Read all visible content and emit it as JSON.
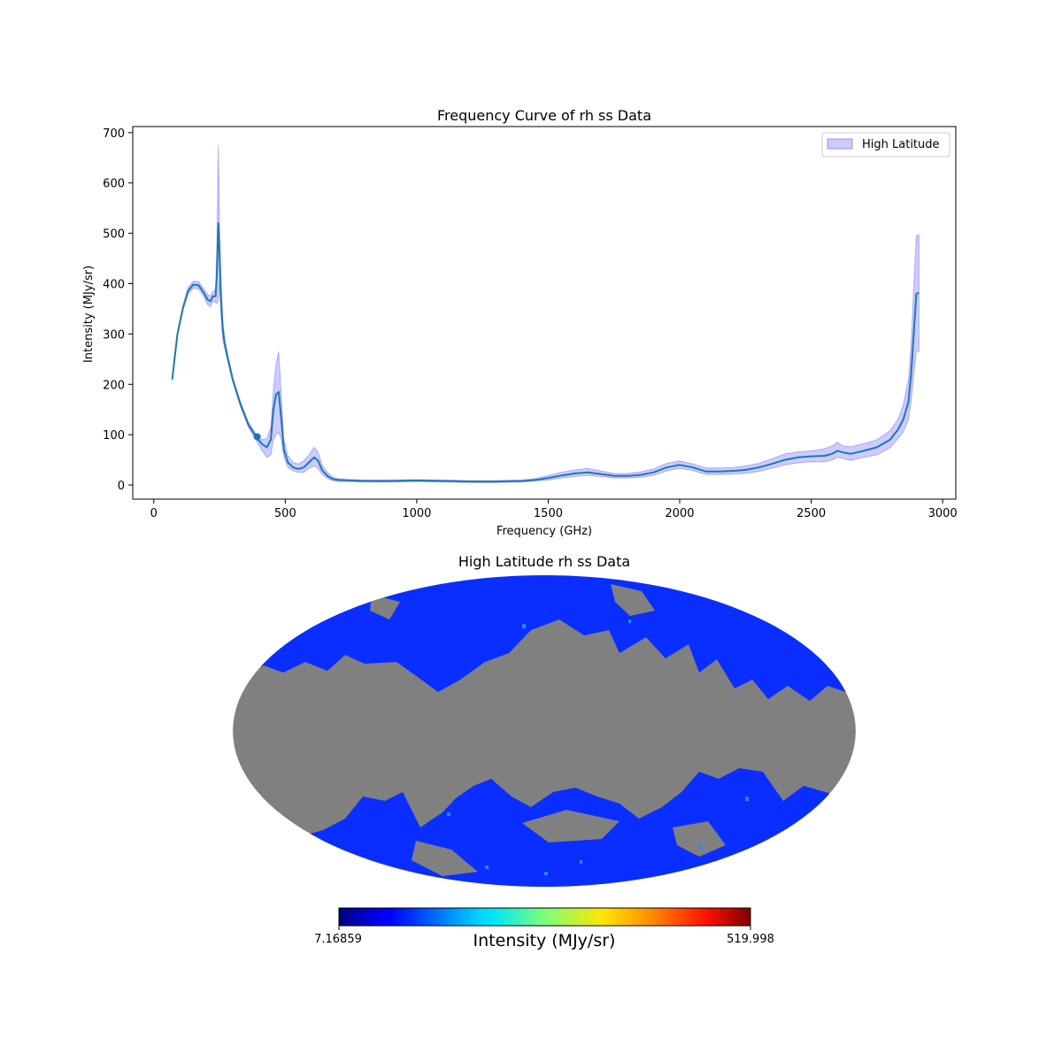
{
  "chart_data": [
    {
      "type": "line",
      "title": "Frequency Curve of rh ss Data",
      "xlabel": "Frequency (GHz)",
      "ylabel": "Intensity (MJy/sr)",
      "xlim": [
        -80,
        3050
      ],
      "ylim": [
        -28,
        712
      ],
      "xticks": [
        0,
        500,
        1000,
        1500,
        2000,
        2500,
        3000
      ],
      "yticks": [
        0,
        100,
        200,
        300,
        400,
        500,
        600,
        700
      ],
      "legend": {
        "label": "High Latitude",
        "position": "top-right"
      },
      "grid": false,
      "series": [
        {
          "style": "line",
          "color": "#1f77b4",
          "x": [
            70,
            90,
            110,
            130,
            150,
            170,
            190,
            205,
            215,
            225,
            235,
            240,
            245,
            250,
            255,
            262,
            270,
            280,
            300,
            330,
            360,
            390,
            410,
            430,
            445,
            455,
            465,
            475,
            485,
            495,
            510,
            530,
            550,
            570,
            590,
            610,
            625,
            640,
            660,
            680,
            700,
            750,
            800,
            900,
            1000,
            1100,
            1200,
            1300,
            1400,
            1450,
            1500,
            1550,
            1600,
            1650,
            1700,
            1750,
            1800,
            1850,
            1900,
            1950,
            2000,
            2050,
            2100,
            2150,
            2200,
            2250,
            2300,
            2350,
            2400,
            2450,
            2500,
            2550,
            2580,
            2600,
            2620,
            2650,
            2700,
            2750,
            2800,
            2830,
            2850,
            2870,
            2880,
            2890,
            2900,
            2910
          ],
          "y": [
            210,
            300,
            350,
            385,
            398,
            397,
            382,
            368,
            365,
            375,
            375,
            420,
            520,
            460,
            380,
            310,
            280,
            255,
            210,
            160,
            120,
            95,
            82,
            75,
            90,
            150,
            180,
            185,
            130,
            70,
            45,
            35,
            32,
            35,
            45,
            55,
            48,
            30,
            18,
            12,
            10,
            9,
            8,
            8,
            9,
            8,
            7,
            7,
            8,
            10,
            14,
            19,
            23,
            25,
            22,
            18,
            18,
            20,
            25,
            35,
            40,
            35,
            27,
            27,
            28,
            30,
            35,
            42,
            50,
            55,
            57,
            58,
            62,
            68,
            65,
            62,
            68,
            75,
            90,
            110,
            130,
            165,
            220,
            300,
            380,
            382
          ]
        },
        {
          "style": "band",
          "name": "High Latitude",
          "color": "#0000ff",
          "x": [
            70,
            90,
            110,
            130,
            150,
            170,
            190,
            205,
            215,
            225,
            235,
            240,
            245,
            250,
            255,
            262,
            270,
            280,
            300,
            330,
            360,
            390,
            410,
            430,
            445,
            455,
            465,
            475,
            485,
            495,
            510,
            530,
            550,
            570,
            590,
            610,
            625,
            640,
            660,
            680,
            700,
            750,
            800,
            900,
            1000,
            1100,
            1200,
            1300,
            1400,
            1450,
            1500,
            1550,
            1600,
            1650,
            1700,
            1750,
            1800,
            1850,
            1900,
            1950,
            2000,
            2050,
            2100,
            2150,
            2200,
            2250,
            2300,
            2350,
            2400,
            2450,
            2500,
            2550,
            2580,
            2600,
            2620,
            2650,
            2700,
            2750,
            2800,
            2830,
            2850,
            2870,
            2880,
            2890,
            2900,
            2910
          ],
          "upper": [
            213,
            304,
            354,
            392,
            405,
            404,
            390,
            378,
            376,
            385,
            387,
            480,
            675,
            520,
            420,
            330,
            290,
            262,
            215,
            165,
            125,
            100,
            90,
            92,
            115,
            190,
            240,
            265,
            175,
            90,
            58,
            45,
            42,
            48,
            60,
            75,
            65,
            40,
            25,
            16,
            13,
            11,
            10,
            10,
            11,
            10,
            9,
            9,
            10,
            13,
            19,
            25,
            30,
            33,
            28,
            23,
            23,
            26,
            32,
            43,
            48,
            42,
            34,
            34,
            35,
            38,
            43,
            52,
            62,
            66,
            68,
            72,
            78,
            85,
            78,
            76,
            82,
            90,
            108,
            130,
            160,
            210,
            280,
            395,
            495,
            497
          ],
          "lower": [
            207,
            296,
            346,
            378,
            391,
            390,
            374,
            358,
            354,
            365,
            363,
            360,
            365,
            400,
            340,
            290,
            270,
            248,
            205,
            155,
            115,
            88,
            70,
            55,
            60,
            90,
            100,
            105,
            90,
            55,
            35,
            28,
            25,
            25,
            33,
            38,
            33,
            22,
            13,
            9,
            7,
            7,
            6,
            6,
            7,
            6,
            5,
            5,
            6,
            8,
            10,
            14,
            17,
            19,
            17,
            14,
            14,
            15,
            19,
            28,
            33,
            29,
            21,
            21,
            22,
            23,
            27,
            33,
            40,
            44,
            46,
            46,
            50,
            55,
            53,
            49,
            55,
            60,
            74,
            92,
            105,
            130,
            165,
            220,
            265,
            265
          ]
        },
        {
          "style": "marker",
          "color": "#1f77b4",
          "x": [
            393
          ],
          "y": [
            96
          ]
        }
      ]
    },
    {
      "type": "heatmap",
      "title": "High Latitude rh ss Data",
      "projection": "Mollweide",
      "colormap": "jet",
      "masked_color": "#808080",
      "colorbar": {
        "label": "Intensity (MJy/sr)",
        "min": "7.16859",
        "max": "519.998",
        "position": "bottom"
      }
    }
  ]
}
